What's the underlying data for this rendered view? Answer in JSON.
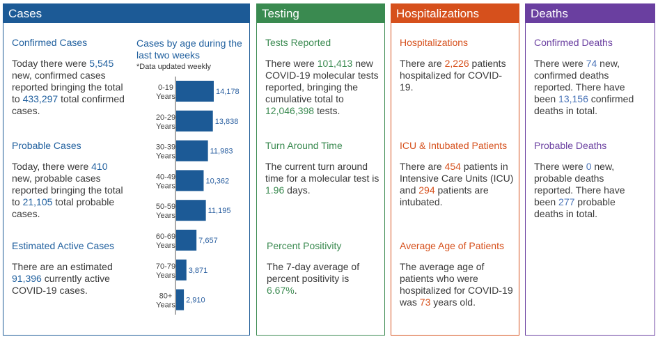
{
  "cases": {
    "header": "Cases",
    "confirmed": {
      "title": "Confirmed Cases",
      "t1": "Today there were ",
      "v1": "5,545",
      "t2": " new, confirmed cases reported bringing the total to ",
      "v2": "433,297",
      "t3": " total confirmed cases."
    },
    "probable": {
      "title": "Probable Cases",
      "t1": "Today, there were ",
      "v1": "410",
      "t2": " new, probable cases reported bringing the total to ",
      "v2": "21,105",
      "t3": " total probable cases."
    },
    "active": {
      "title": "Estimated Active Cases",
      "t1": "There are an estimated ",
      "v1": "91,396",
      "t2": " currently active COVID-19 cases."
    }
  },
  "chart_data": {
    "type": "bar",
    "orientation": "horizontal",
    "title": "Cases by age during the last two weeks",
    "note": "*Data updated weekly",
    "categories": [
      [
        "0-19",
        "Years"
      ],
      [
        "20-29",
        "Years"
      ],
      [
        "30-39",
        "Years"
      ],
      [
        "40-49",
        "Years"
      ],
      [
        "50-59",
        "Years"
      ],
      [
        "60-69",
        "Years"
      ],
      [
        "70-79",
        "Years"
      ],
      [
        "80+",
        "Years"
      ]
    ],
    "values": [
      14178,
      13838,
      11983,
      10362,
      11195,
      7657,
      3871,
      2910
    ],
    "value_labels": [
      "14,178",
      "13,838",
      "11,983",
      "10,362",
      "11,195",
      "7,657",
      "3,871",
      "2,910"
    ],
    "bar_color": "#1c5a96",
    "grid": false
  },
  "testing": {
    "header": "Testing",
    "tests": {
      "title": "Tests Reported",
      "t1": "There were ",
      "v1": "101,413",
      "t2": " new COVID-19 molecular tests reported, bringing the cumulative total to ",
      "v2": "12,046,398",
      "t3": " tests."
    },
    "turnaround": {
      "title": "Turn Around Time",
      "t1": "The current turn around time for a molecular test is ",
      "v1": "1.96",
      "t2": " days."
    },
    "positivity": {
      "title": "Percent Positivity",
      "t1": "The 7-day average of percent positivity is ",
      "v1": "6.67%",
      "t2": "."
    }
  },
  "hosp": {
    "header": "Hospitalizations",
    "hospitalized": {
      "title": "Hospitalizations",
      "t1": "There are ",
      "v1": "2,226",
      "t2": " patients hospitalized for COVID-19."
    },
    "icu": {
      "title": "ICU & Intubated Patients",
      "t1": "There are ",
      "v1": "454",
      "t2": " patients in Intensive Care Units (ICU) and ",
      "v2": "294",
      "t3": " patients are intubated."
    },
    "age": {
      "title": "Average Age of Patients",
      "t1": "The average age of patients who were hospitalized for COVID-19 was ",
      "v1": "73",
      "t2": " years old."
    }
  },
  "deaths": {
    "header": "Deaths",
    "confirmed": {
      "title": "Confirmed Deaths",
      "t1": "There were ",
      "v1": "74",
      "t2": " new, confirmed deaths reported. There have been ",
      "v2": "13,156",
      "t3": " confirmed deaths in total."
    },
    "probable": {
      "title": "Probable Deaths",
      "t1": "There were ",
      "v1": "0",
      "t2": " new, probable deaths reported. There have been ",
      "v2": "277",
      "t3": " probable deaths in total."
    }
  }
}
